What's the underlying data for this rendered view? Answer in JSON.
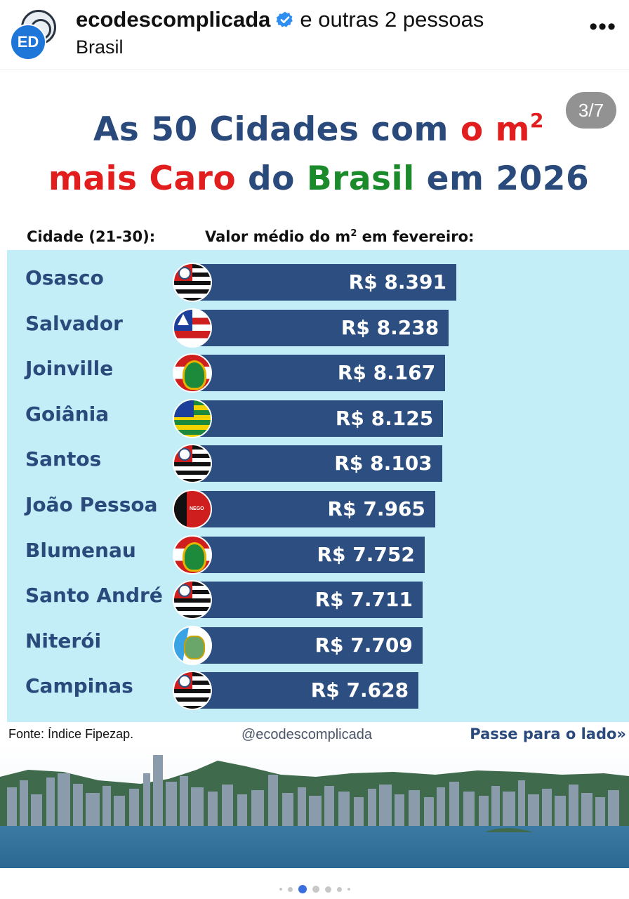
{
  "header": {
    "avatar_label": "ED",
    "username": "ecodescomplicada",
    "collab_text": "e outras 2 pessoas",
    "location": "Brasil",
    "more_label": "•••"
  },
  "post": {
    "counter": "3/7",
    "title_line1": {
      "part1": "As 50 Cidades com ",
      "part2": "o m",
      "sup": "2"
    },
    "title_line2": {
      "part1": "mais ",
      "part2": "Caro",
      "part3": " do ",
      "part4": "Brasil",
      "part5": " em 2026"
    },
    "col_city": "Cidade (21-30):",
    "col_value": "Valor médio do m",
    "col_value_sup": "2",
    "col_value_tail": " em fevereiro:",
    "footer_source": "Fonte: Índice Fipezap.",
    "footer_handle": "@ecodescomplicada",
    "footer_next": "Passe para o lado»"
  },
  "chart_data": {
    "type": "bar",
    "title": "As 50 Cidades com o m² mais Caro do Brasil em 2026",
    "xlabel": "Valor médio do m² em fevereiro:",
    "ylabel": "Cidade (21-30):",
    "categories": [
      "Osasco",
      "Salvador",
      "Joinville",
      "Goiânia",
      "Santos",
      "João Pessoa",
      "Blumenau",
      "Santo André",
      "Niterói",
      "Campinas"
    ],
    "values": [
      8391,
      8238,
      8167,
      8125,
      8103,
      7965,
      7752,
      7711,
      7709,
      7628
    ],
    "value_labels": [
      "R$ 8.391",
      "R$ 8.238",
      "R$ 8.167",
      "R$ 8.125",
      "R$ 8.103",
      "R$ 7.965",
      "R$ 7.752",
      "R$ 7.711",
      "R$ 7.709",
      "R$ 7.628"
    ],
    "flag_icons": [
      "sao-paulo-flag-icon",
      "bahia-flag-icon",
      "santa-catarina-flag-icon",
      "goias-flag-icon",
      "sao-paulo-flag-icon",
      "paraiba-flag-icon",
      "santa-catarina-flag-icon",
      "sao-paulo-flag-icon",
      "rio-de-janeiro-flag-icon",
      "sao-paulo-flag-icon"
    ],
    "flag_text_paraiba": "NEGO"
  },
  "pagination": {
    "total": 7,
    "active": 3
  },
  "colors": {
    "bar": "#2d4e80",
    "panel": "#c3edf7",
    "title_blue": "#2a4a7c",
    "title_red": "#e11d1d",
    "title_green": "#1a8a2b",
    "dot_active": "#3b6fe0"
  }
}
